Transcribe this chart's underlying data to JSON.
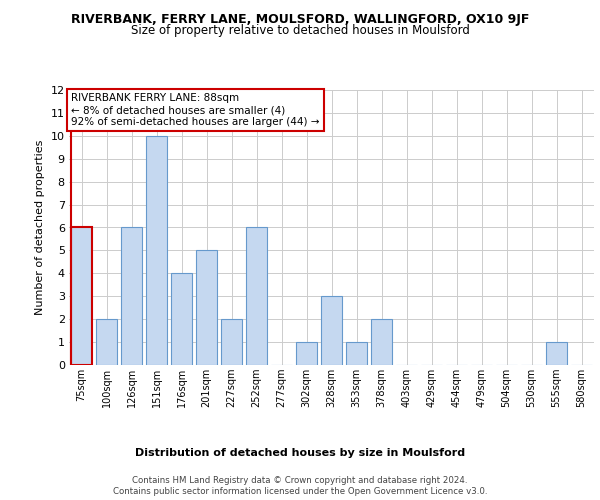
{
  "title": "RIVERBANK, FERRY LANE, MOULSFORD, WALLINGFORD, OX10 9JF",
  "subtitle": "Size of property relative to detached houses in Moulsford",
  "xlabel": "Distribution of detached houses by size in Moulsford",
  "ylabel": "Number of detached properties",
  "categories": [
    "75sqm",
    "100sqm",
    "126sqm",
    "151sqm",
    "176sqm",
    "201sqm",
    "227sqm",
    "252sqm",
    "277sqm",
    "302sqm",
    "328sqm",
    "353sqm",
    "378sqm",
    "403sqm",
    "429sqm",
    "454sqm",
    "479sqm",
    "504sqm",
    "530sqm",
    "555sqm",
    "580sqm"
  ],
  "values": [
    6,
    2,
    6,
    10,
    4,
    5,
    2,
    6,
    0,
    1,
    3,
    1,
    2,
    0,
    0,
    0,
    0,
    0,
    0,
    1,
    0
  ],
  "bar_color": "#c5d8f0",
  "bar_edge_color": "#6699cc",
  "highlight_bar_index": 0,
  "highlight_edge_color": "#cc0000",
  "annotation_box_text": "RIVERBANK FERRY LANE: 88sqm\n← 8% of detached houses are smaller (4)\n92% of semi-detached houses are larger (44) →",
  "annotation_box_edge_color": "#cc0000",
  "ylim": [
    0,
    12
  ],
  "yticks": [
    0,
    1,
    2,
    3,
    4,
    5,
    6,
    7,
    8,
    9,
    10,
    11,
    12
  ],
  "background_color": "#ffffff",
  "grid_color": "#cccccc",
  "footer_line1": "Contains HM Land Registry data © Crown copyright and database right 2024.",
  "footer_line2": "Contains public sector information licensed under the Open Government Licence v3.0."
}
